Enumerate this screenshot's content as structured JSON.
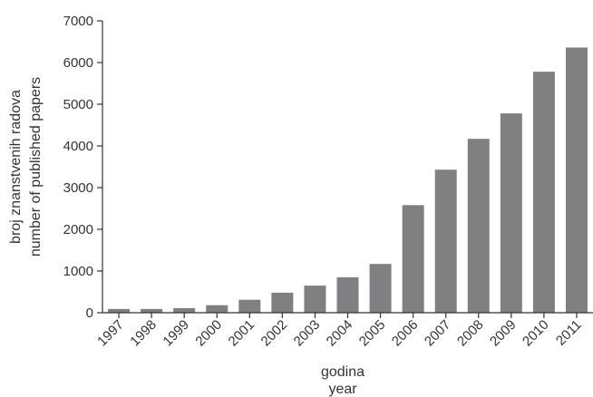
{
  "chart_data": {
    "type": "bar",
    "title": "",
    "xlabel_lines": [
      "godina",
      "year"
    ],
    "ylabel_lines": [
      "broj znanstvenih radova",
      "number of published papers"
    ],
    "ylim": [
      0,
      7000
    ],
    "yticks": [
      0,
      1000,
      2000,
      3000,
      4000,
      5000,
      6000,
      7000
    ],
    "categories": [
      "1997",
      "1998",
      "1999",
      "2000",
      "2001",
      "2002",
      "2003",
      "2004",
      "2005",
      "2006",
      "2007",
      "2008",
      "2009",
      "2010",
      "2011"
    ],
    "values": [
      90,
      90,
      110,
      180,
      310,
      480,
      650,
      850,
      1170,
      2580,
      3430,
      4170,
      4780,
      5780,
      6360
    ],
    "grid": false,
    "legend": "none",
    "colors": {
      "bar": "#808083",
      "axis": "#333333",
      "text": "#333333"
    }
  }
}
